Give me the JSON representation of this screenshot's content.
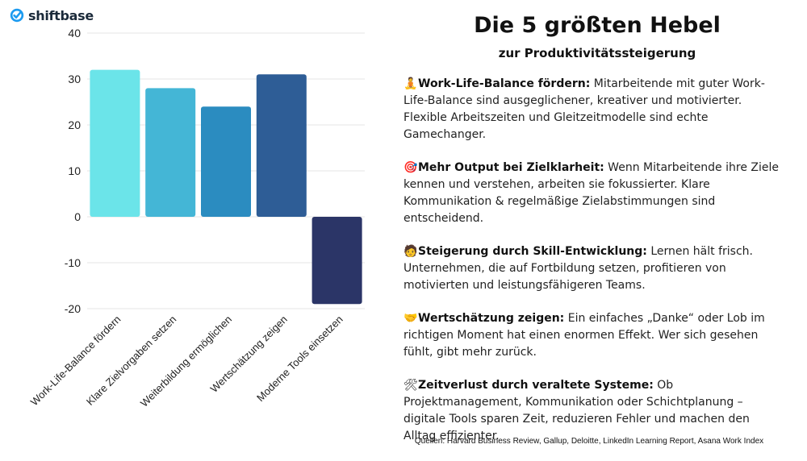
{
  "brand": {
    "name": "shiftbase",
    "icon": "check-circle-icon",
    "color": "#1d9bf0"
  },
  "title": "Die 5 größten Hebel",
  "subtitle": "zur Produktivitätssteigerung",
  "points": [
    {
      "icon": "person-balance-icon",
      "glyph": "🧘",
      "heading": "Work-Life-Balance fördern:",
      "text": " Mitarbeitende mit guter Work-Life-Balance sind ausgeglichener, kreativer und motivierter. Flexible Arbeitszeiten und Gleitzeitmodelle sind echte Gamechanger."
    },
    {
      "icon": "target-icon",
      "glyph": "🎯",
      "heading": "Mehr Output bei Zielklarheit:",
      "text": " Wenn Mitarbeitende ihre Ziele kennen und verstehen, arbeiten sie fokussierter. Klare Kommunikation & regelmäßige Zielabstimmungen sind entscheidend."
    },
    {
      "icon": "student-icon",
      "glyph": "🧑",
      "heading": "Steigerung durch Skill-Entwicklung:",
      "text": " Lernen hält frisch. Unternehmen, die auf Fortbildung setzen, profitieren von motivierten und leistungsfähigeren Teams."
    },
    {
      "icon": "handshake-icon",
      "glyph": "🤝",
      "heading": "Wertschätzung zeigen:",
      "text": " Ein einfaches „Danke“ oder Lob im richtigen Moment hat einen enormen Effekt. Wer sich gesehen fühlt, gibt mehr zurück."
    },
    {
      "icon": "tools-icon",
      "glyph": "🛠",
      "heading": "Zeitverlust durch veraltete Systeme:",
      "text": " Ob Projektmanagement, Kommunikation oder Schichtplanung – digitale Tools sparen Zeit, reduzieren Fehler und machen den Alltag effizienter."
    }
  ],
  "sources": "Quellen: Harvard Business Review, Gallup, Deloitte, LinkedIn Learning Report, Asana Work Index",
  "chart_data": {
    "type": "bar",
    "categories": [
      "Work-Life-Balance fördern",
      "Klare Zielvorgaben setzen",
      "Weiterbildung ermöglichen",
      "Wertschätzung zeigen",
      "Moderne Tools einsetzen"
    ],
    "values": [
      32,
      28,
      24,
      31,
      -19
    ],
    "colors": [
      "#6be4e9",
      "#44b6d6",
      "#2b8cc0",
      "#2e5d96",
      "#2b3567"
    ],
    "ylim": [
      -20,
      40
    ],
    "yticks": [
      -20,
      -10,
      0,
      10,
      20,
      30,
      40
    ],
    "grid": true,
    "title": "",
    "xlabel": "",
    "ylabel": ""
  }
}
